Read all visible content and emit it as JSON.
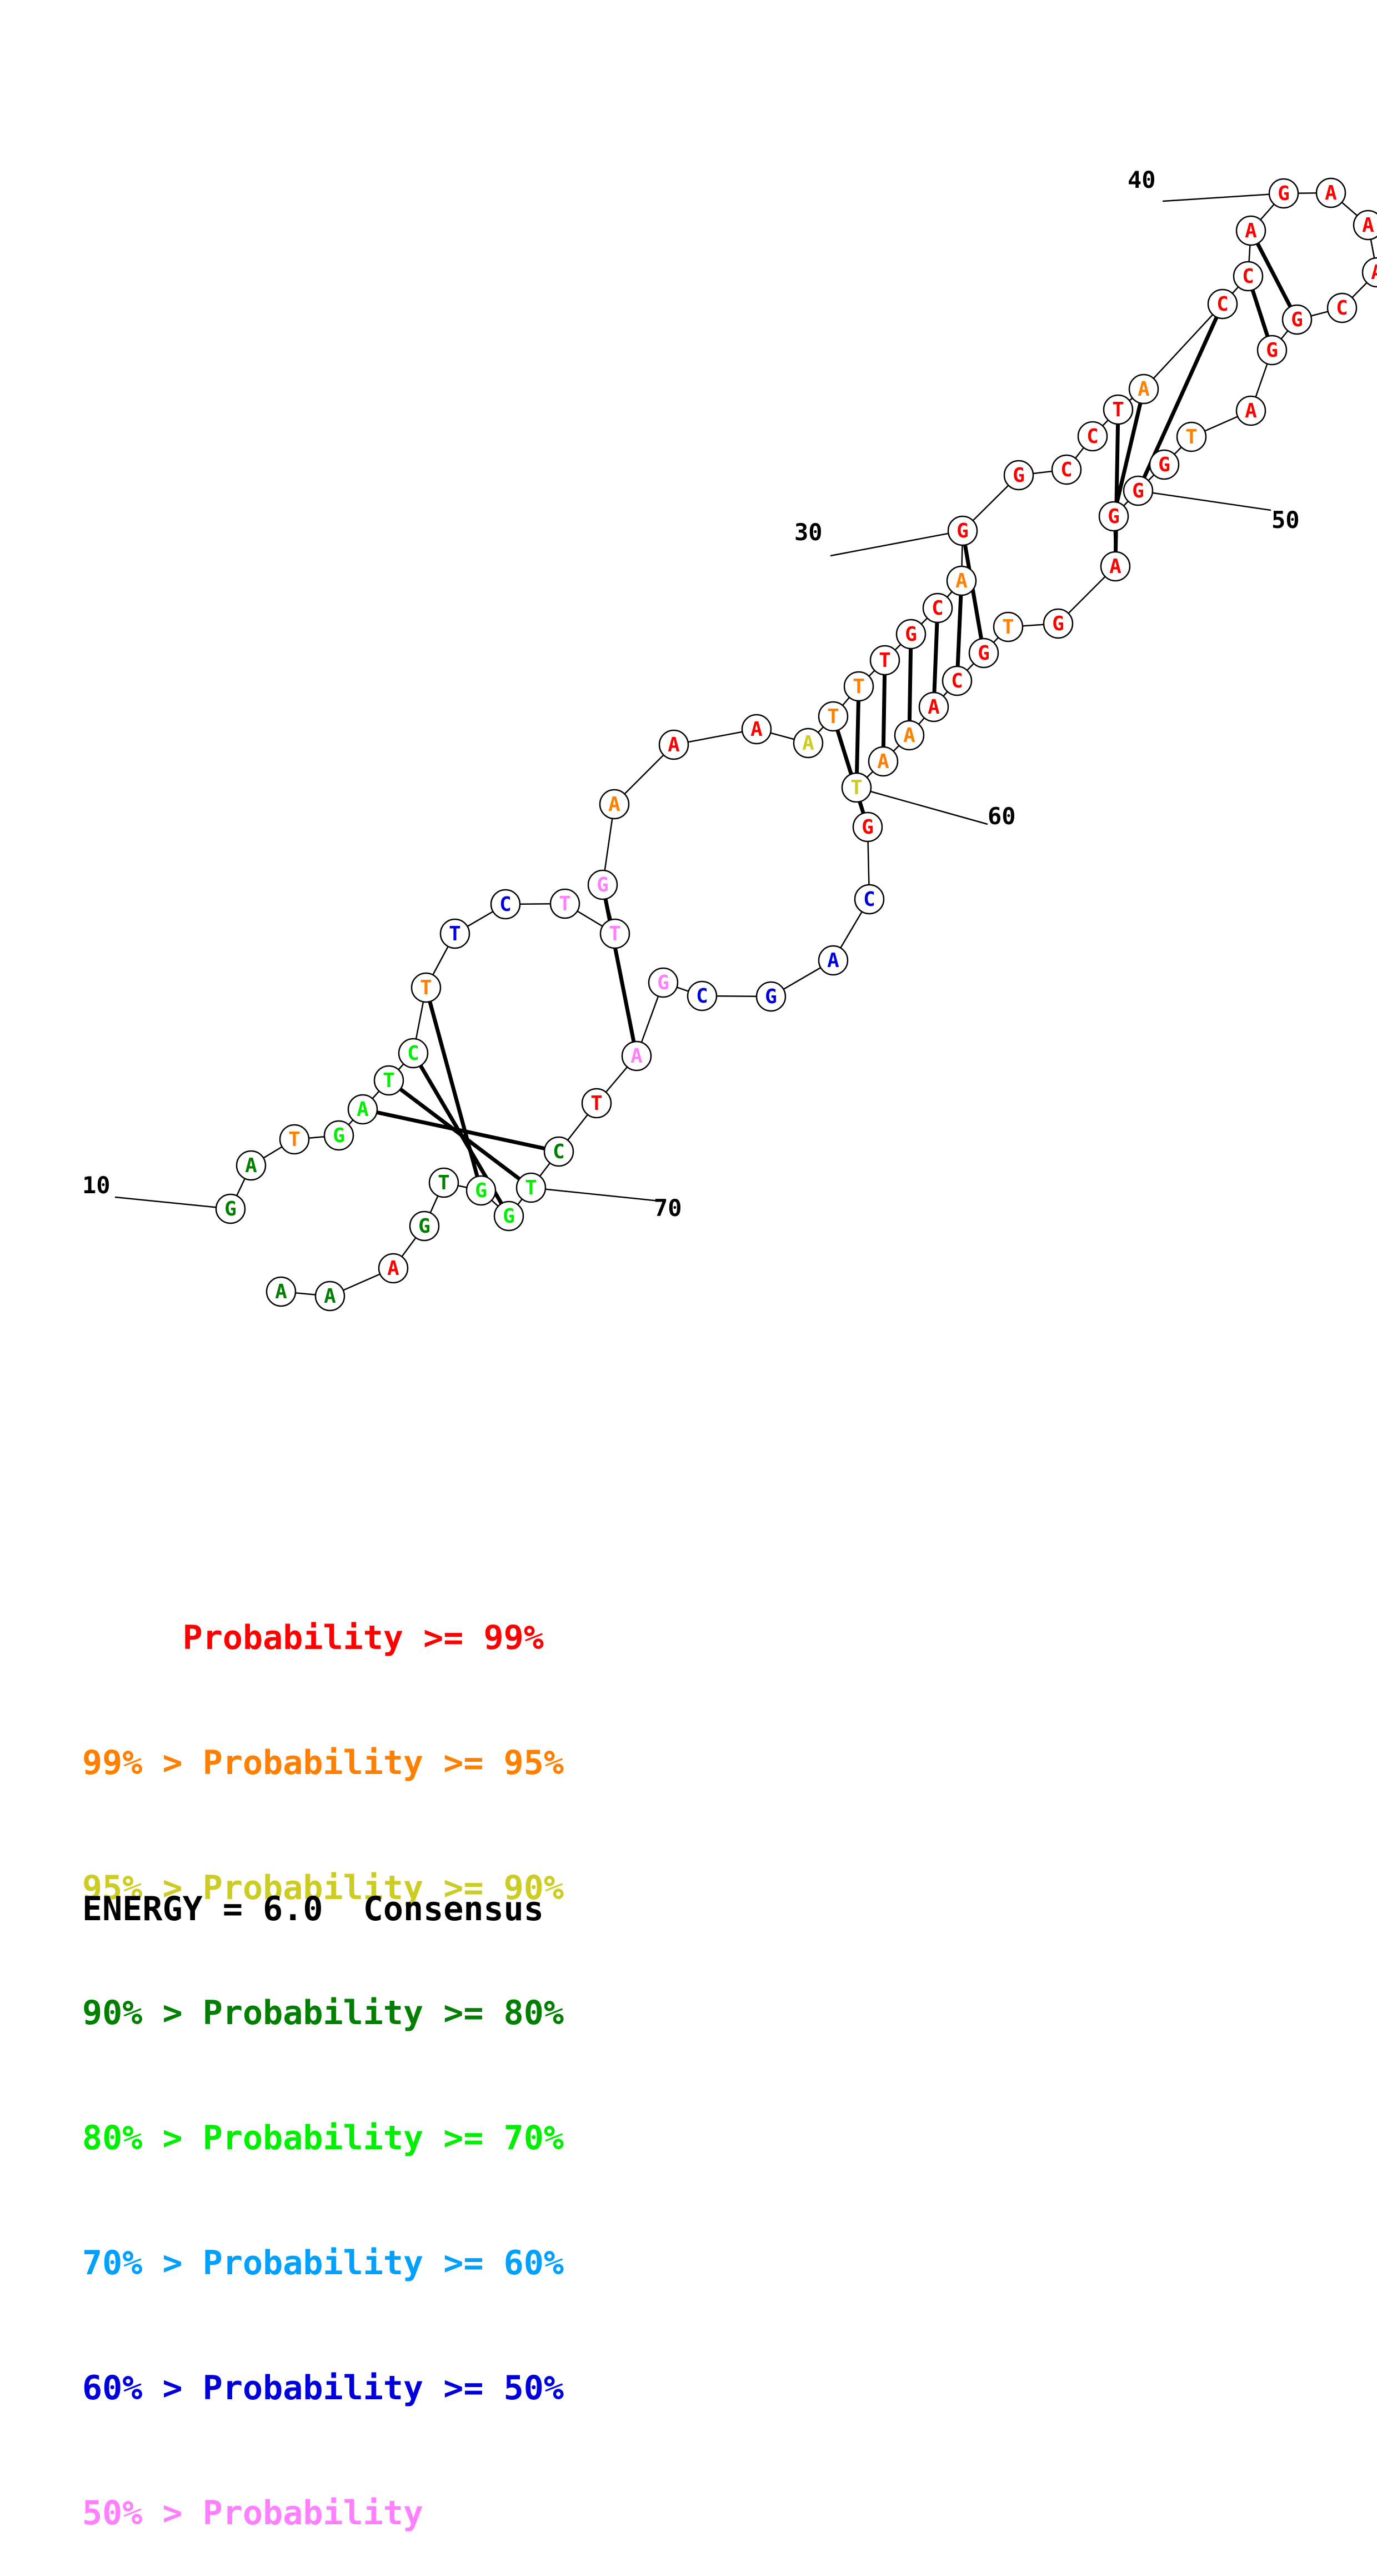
{
  "colors": {
    "red": "#ff0000",
    "orange": "#ff7f00",
    "yellow": "#cccc22",
    "darkgreen": "#007f00",
    "green": "#00ee00",
    "cyan": "#00a0ff",
    "blue": "#0000dd",
    "pink": "#ff80ff"
  },
  "nucleotides": [
    {
      "base": "G",
      "color": "darkgreen"
    },
    {
      "base": "A",
      "color": "darkgreen"
    },
    {
      "base": "T",
      "color": "orange"
    },
    {
      "base": "G",
      "color": "green"
    },
    {
      "base": "A",
      "color": "green"
    },
    {
      "base": "T",
      "color": "green"
    },
    {
      "base": "C",
      "color": "green"
    },
    {
      "base": "T",
      "color": "orange"
    },
    {
      "base": "T",
      "color": "blue"
    },
    {
      "base": "C",
      "color": "blue"
    },
    {
      "base": "T",
      "color": "pink"
    },
    {
      "base": "T",
      "color": "pink"
    },
    {
      "base": "G",
      "color": "pink"
    },
    {
      "base": "A",
      "color": "orange"
    },
    {
      "base": "A",
      "color": "red"
    },
    {
      "base": "A",
      "color": "red"
    },
    {
      "base": "A",
      "color": "yellow"
    },
    {
      "base": "T",
      "color": "orange"
    },
    {
      "base": "T",
      "color": "orange"
    },
    {
      "base": "T",
      "color": "red"
    },
    {
      "base": "G",
      "color": "red"
    },
    {
      "base": "C",
      "color": "red"
    },
    {
      "base": "A",
      "color": "orange"
    },
    {
      "base": "G",
      "color": "red"
    },
    {
      "base": "G",
      "color": "red"
    },
    {
      "base": "C",
      "color": "red"
    },
    {
      "base": "C",
      "color": "red"
    },
    {
      "base": "T",
      "color": "red"
    },
    {
      "base": "A",
      "color": "orange"
    },
    {
      "base": "C",
      "color": "red"
    },
    {
      "base": "C",
      "color": "red"
    },
    {
      "base": "A",
      "color": "red"
    },
    {
      "base": "G",
      "color": "red"
    },
    {
      "base": "A",
      "color": "red"
    },
    {
      "base": "A",
      "color": "red"
    },
    {
      "base": "A",
      "color": "red"
    },
    {
      "base": "C",
      "color": "red"
    },
    {
      "base": "G",
      "color": "red"
    },
    {
      "base": "G",
      "color": "red"
    },
    {
      "base": "A",
      "color": "red"
    },
    {
      "base": "T",
      "color": "orange"
    },
    {
      "base": "G",
      "color": "red"
    },
    {
      "base": "G",
      "color": "red"
    },
    {
      "base": "G",
      "color": "red"
    },
    {
      "base": "A",
      "color": "red"
    },
    {
      "base": "G",
      "color": "red"
    },
    {
      "base": "T",
      "color": "orange"
    },
    {
      "base": "G",
      "color": "red"
    },
    {
      "base": "C",
      "color": "red"
    },
    {
      "base": "A",
      "color": "red"
    },
    {
      "base": "A",
      "color": "orange"
    },
    {
      "base": "A",
      "color": "orange"
    },
    {
      "base": "T",
      "color": "yellow"
    },
    {
      "base": "G",
      "color": "red"
    },
    {
      "base": "C",
      "color": "blue"
    },
    {
      "base": "A",
      "color": "blue"
    },
    {
      "base": "G",
      "color": "blue"
    },
    {
      "base": "C",
      "color": "blue"
    },
    {
      "base": "G",
      "color": "pink"
    },
    {
      "base": "A",
      "color": "pink"
    },
    {
      "base": "T",
      "color": "red"
    },
    {
      "base": "C",
      "color": "darkgreen"
    },
    {
      "base": "T",
      "color": "green"
    },
    {
      "base": "G",
      "color": "green"
    },
    {
      "base": "G",
      "color": "green"
    },
    {
      "base": "T",
      "color": "darkgreen"
    },
    {
      "base": "G",
      "color": "darkgreen"
    },
    {
      "base": "A",
      "color": "red"
    },
    {
      "base": "A",
      "color": "darkgreen"
    },
    {
      "base": "A",
      "color": "darkgreen"
    }
  ],
  "position_labels": [
    "10",
    "30",
    "40",
    "50",
    "60",
    "70"
  ],
  "legend": [
    {
      "text": "     Probability >= 99%",
      "color": "red"
    },
    {
      "text": "99% > Probability >= 95%",
      "color": "orange"
    },
    {
      "text": "95% > Probability >= 90%",
      "color": "yellow"
    },
    {
      "text": "90% > Probability >= 80%",
      "color": "darkgreen"
    },
    {
      "text": "80% > Probability >= 70%",
      "color": "green"
    },
    {
      "text": "70% > Probability >= 60%",
      "color": "cyan"
    },
    {
      "text": "60% > Probability >= 50%",
      "color": "blue"
    },
    {
      "text": "50% > Probability",
      "color": "pink"
    }
  ],
  "energy": "ENERGY = 6.0  Consensus"
}
